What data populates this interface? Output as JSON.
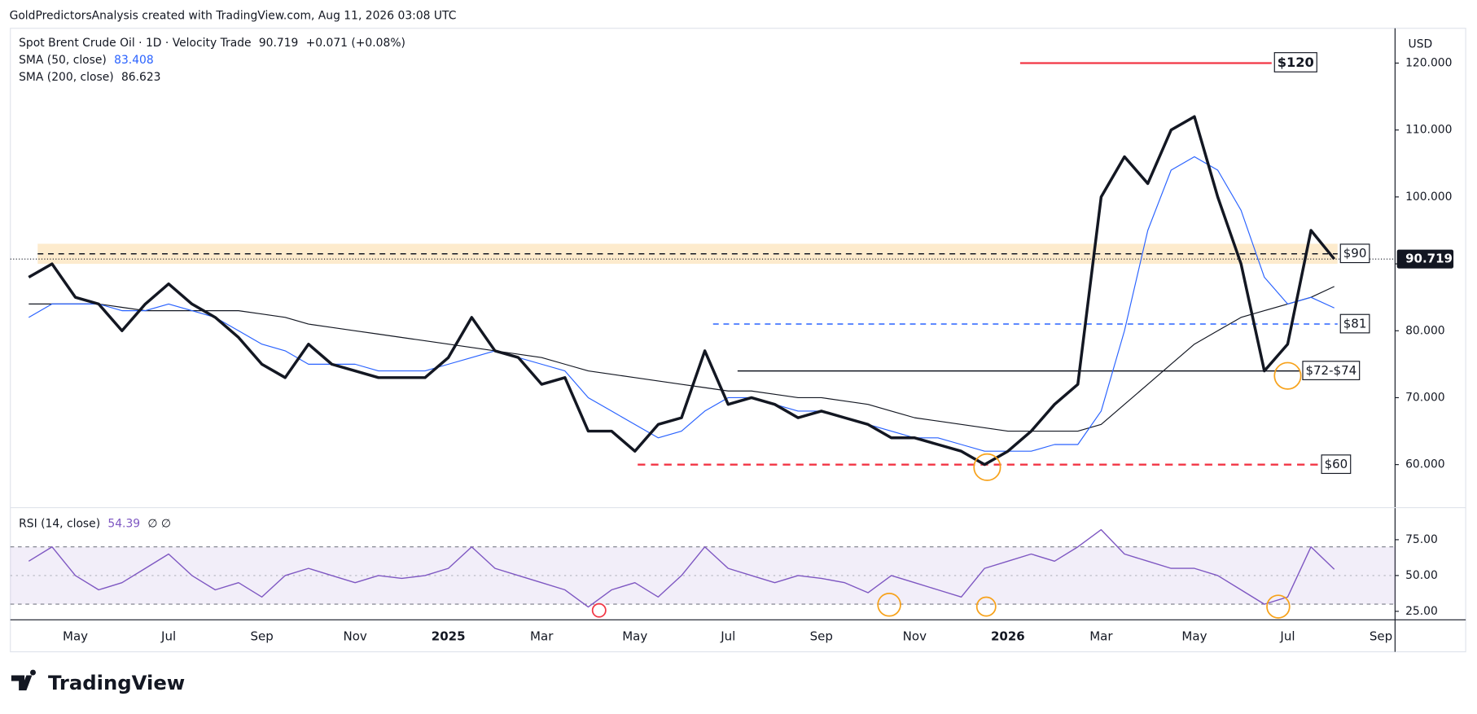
{
  "header": "GoldPredictorsAnalysis created with TradingView.com, Aug 11, 2026 03:08 UTC",
  "branding": "TradingView",
  "currency": "USD",
  "chart_data": [
    {
      "type": "line",
      "change": "+0.071 (+0.08%)",
      "categories": [
        null,
        null,
        "May",
        null,
        null,
        null,
        "Jul",
        null,
        null,
        null,
        "Sep",
        null,
        null,
        null,
        "Nov",
        null,
        null,
        null,
        "2025",
        null,
        null,
        null,
        "Mar",
        null,
        null,
        null,
        "May",
        null,
        null,
        null,
        "Jul",
        null,
        null,
        null,
        "Sep",
        null,
        null,
        null,
        "Nov",
        null,
        null,
        null,
        "2026",
        null,
        null,
        null,
        "Mar",
        null,
        null,
        null,
        "May",
        null,
        null,
        null,
        "Jul",
        null,
        null,
        null,
        "Sep"
      ],
      "series": [
        {
          "name": "Spot Brent Crude Oil · 1D · Velocity Trade",
          "color": "#131722",
          "values": [
            88,
            90,
            85,
            84,
            80,
            84,
            87,
            84,
            82,
            79,
            75,
            73,
            78,
            75,
            74,
            73,
            73,
            73,
            76,
            82,
            77,
            76,
            72,
            73,
            65,
            65,
            62,
            66,
            67,
            77,
            69,
            70,
            69,
            67,
            68,
            67,
            66,
            64,
            64,
            63,
            62,
            60,
            62,
            65,
            69,
            72,
            100,
            106,
            102,
            110,
            112,
            100,
            90,
            74,
            78,
            95,
            90.719,
            null,
            null
          ]
        },
        {
          "name": "SMA (50, close)",
          "color": "#2962ff",
          "values": [
            82,
            84,
            84,
            84,
            83,
            83,
            84,
            83,
            82,
            80,
            78,
            77,
            75,
            75,
            75,
            74,
            74,
            74,
            75,
            76,
            77,
            76,
            75,
            74,
            70,
            68,
            66,
            64,
            65,
            68,
            70,
            70,
            69,
            68,
            68,
            67,
            66,
            65,
            64,
            64,
            63,
            62,
            62,
            62,
            63,
            63,
            68,
            80,
            95,
            104,
            106,
            104,
            98,
            88,
            84,
            85,
            83.408,
            null,
            null
          ]
        },
        {
          "name": "SMA (200, close)",
          "color": "#131722",
          "values": [
            84,
            84,
            84,
            84,
            83.5,
            83,
            83,
            83,
            83,
            83,
            82.5,
            82,
            81,
            80.5,
            80,
            79.5,
            79,
            78.5,
            78,
            77.5,
            77,
            76.5,
            76,
            75,
            74,
            73.5,
            73,
            72.5,
            72,
            71.5,
            71,
            71,
            70.5,
            70,
            70,
            69.5,
            69,
            68,
            67,
            66.5,
            66,
            65.5,
            65,
            65,
            65,
            65,
            66,
            69,
            72,
            75,
            78,
            80,
            82,
            83,
            84,
            85,
            86.623,
            null,
            null
          ]
        }
      ],
      "ylim": [
        53.7,
        125.2
      ],
      "yticks": [
        {
          "value": 60,
          "label": "60.000"
        },
        {
          "value": 70,
          "label": "70.000"
        },
        {
          "value": 80,
          "label": "80.000"
        },
        {
          "value": 90,
          "label": "90.000"
        },
        {
          "value": 100,
          "label": "100.000"
        },
        {
          "value": 110,
          "label": "110.000"
        },
        {
          "value": 120,
          "label": "120.000"
        }
      ],
      "zone": [
        90,
        93
      ],
      "levels": [
        {
          "label": "$120",
          "value": 120,
          "color": "#f23645",
          "style": "solid"
        },
        {
          "label": "$90",
          "value": 90,
          "color": "#131722",
          "style": "dashed"
        },
        {
          "label": "$81",
          "value": 81,
          "color": "#2962ff",
          "style": "dashed"
        },
        {
          "label": "$72-$74",
          "value": 74,
          "color": "#131722",
          "style": "solid"
        },
        {
          "label": "$60",
          "value": 60,
          "color": "#f23645",
          "style": "dashed"
        }
      ]
    },
    {
      "type": "line",
      "flags": "∅ ∅",
      "series": [
        {
          "name": "RSI (14, close)",
          "color": "#7e57c2",
          "values": [
            60,
            70,
            50,
            40,
            45,
            55,
            65,
            50,
            40,
            45,
            35,
            50,
            55,
            50,
            45,
            50,
            48,
            50,
            55,
            70,
            55,
            50,
            45,
            40,
            28,
            40,
            45,
            35,
            50,
            70,
            55,
            50,
            45,
            50,
            48,
            45,
            38,
            50,
            45,
            40,
            35,
            55,
            60,
            65,
            60,
            70,
            82,
            65,
            60,
            55,
            55,
            50,
            40,
            30,
            35,
            70,
            54.39,
            null,
            null
          ]
        }
      ],
      "ylim": [
        19.1,
        96.7
      ],
      "yticks": [
        {
          "value": 25,
          "label": "25.00"
        },
        {
          "value": 50,
          "label": "50.00"
        },
        {
          "value": 75,
          "label": "75.00"
        }
      ],
      "band": [
        30,
        70
      ]
    }
  ]
}
